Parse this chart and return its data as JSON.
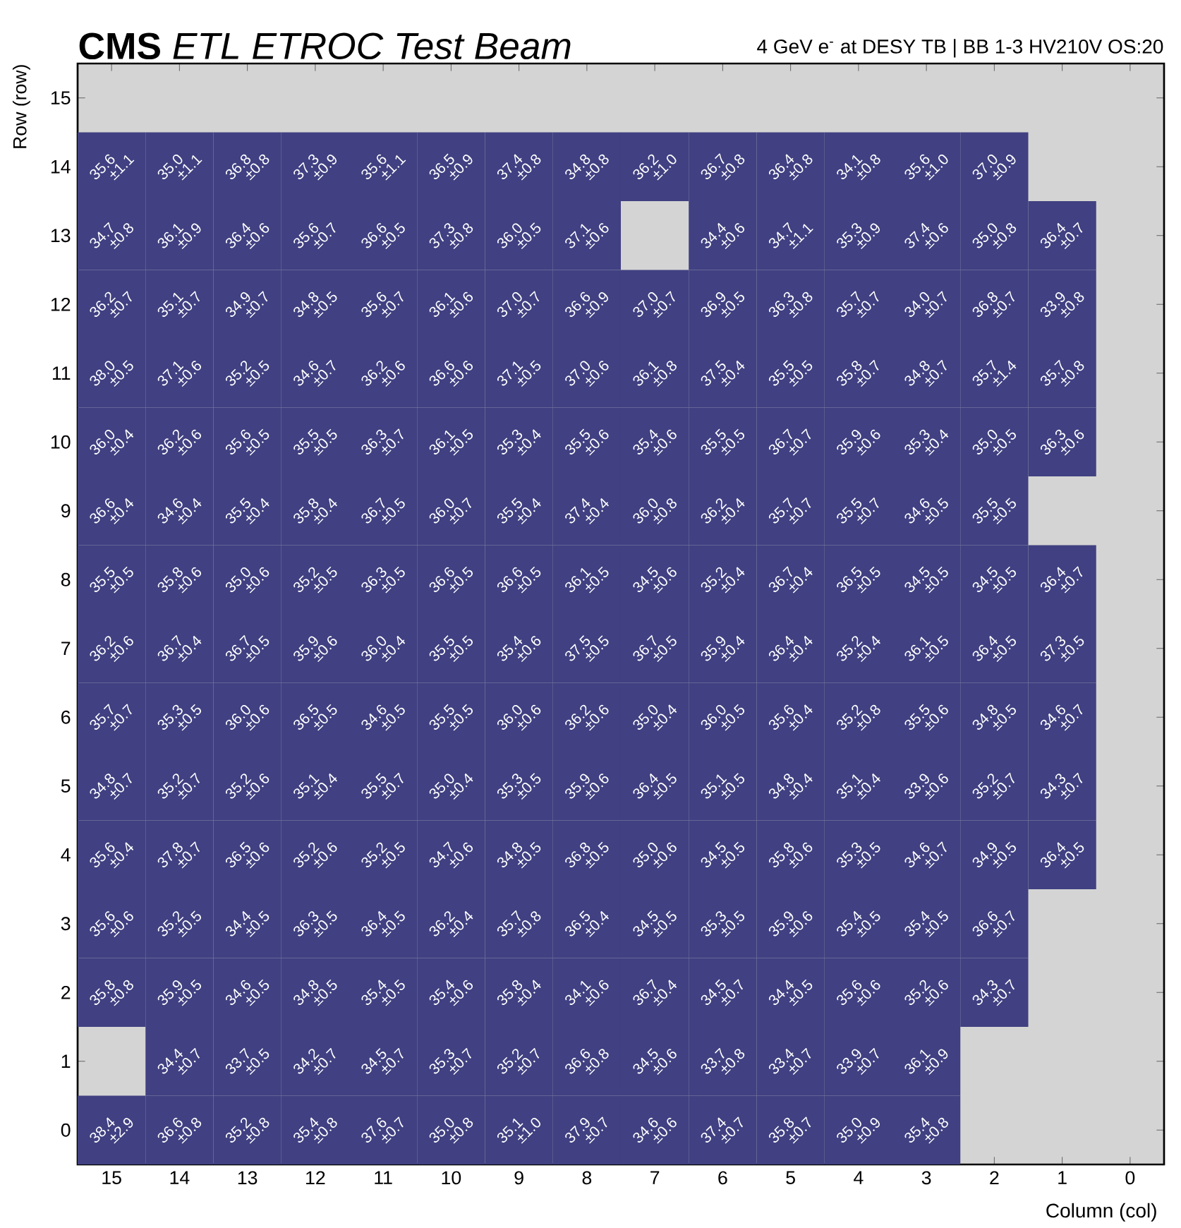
{
  "chart_data": {
    "type": "heatmap",
    "title": "**CMS** *ETL ETROC Test Beam*",
    "subtitle": "4 GeV e$^{-}$ at DESY TB | BB 1-3 HV210V OS:20",
    "xlabel": "Column (col)",
    "ylabel": "Row (row)",
    "categories": [
      "15",
      "14",
      "13",
      "12",
      "11",
      "10",
      "9",
      "8",
      "7",
      "6",
      "5",
      "4",
      "3",
      "2",
      "1",
      "0"
    ],
    "y_categories": [
      "15",
      "14",
      "13",
      "12",
      "11",
      "10",
      "9",
      "8",
      "7",
      "6",
      "5",
      "4",
      "3",
      "2",
      "1",
      "0"
    ],
    "cells": [
      [
        null,
        null,
        null,
        null,
        null,
        null,
        null,
        null,
        null,
        null,
        null,
        null,
        null,
        null,
        null,
        null
      ],
      [
        35.6,
        35.0,
        36.8,
        37.3,
        35.6,
        36.5,
        37.4,
        34.8,
        36.2,
        36.7,
        36.4,
        34.1,
        35.6,
        37.0,
        null,
        null
      ],
      [
        34.7,
        36.1,
        36.4,
        35.6,
        36.6,
        37.3,
        36.0,
        37.1,
        null,
        34.4,
        34.7,
        35.3,
        37.4,
        35.0,
        36.4,
        null
      ],
      [
        36.2,
        35.1,
        34.9,
        34.8,
        35.6,
        36.1,
        37.0,
        36.6,
        37.0,
        36.9,
        36.3,
        35.7,
        34.0,
        36.8,
        33.9,
        null
      ],
      [
        38.0,
        37.1,
        35.2,
        34.6,
        36.2,
        36.6,
        37.1,
        37.0,
        36.1,
        37.5,
        35.5,
        35.8,
        34.8,
        35.7,
        35.7,
        null
      ],
      [
        36.0,
        36.2,
        35.6,
        35.5,
        36.3,
        36.1,
        35.3,
        35.5,
        35.4,
        35.5,
        36.7,
        35.9,
        35.3,
        35.0,
        36.3,
        null
      ],
      [
        36.6,
        34.6,
        35.5,
        35.8,
        36.7,
        36.0,
        35.5,
        37.4,
        36.0,
        36.2,
        35.7,
        35.5,
        34.6,
        35.5,
        null,
        null
      ],
      [
        35.5,
        35.8,
        35.0,
        35.2,
        36.3,
        36.6,
        36.6,
        36.1,
        34.5,
        35.2,
        36.7,
        36.5,
        34.5,
        34.5,
        36.4,
        null
      ],
      [
        36.2,
        36.7,
        36.7,
        35.9,
        36.0,
        35.5,
        35.4,
        37.5,
        36.7,
        35.9,
        36.4,
        35.2,
        36.1,
        36.4,
        37.3,
        null
      ],
      [
        35.7,
        35.3,
        36.0,
        36.5,
        34.6,
        35.5,
        36.0,
        36.2,
        35.0,
        36.0,
        35.6,
        35.2,
        35.5,
        34.8,
        34.6,
        null
      ],
      [
        34.8,
        35.2,
        35.2,
        35.1,
        35.5,
        35.0,
        35.3,
        35.9,
        36.4,
        35.1,
        34.8,
        35.1,
        33.9,
        35.2,
        34.3,
        null
      ],
      [
        35.6,
        37.8,
        36.5,
        35.2,
        35.2,
        34.7,
        34.8,
        36.8,
        35.0,
        34.5,
        35.8,
        35.3,
        34.6,
        34.9,
        36.4,
        null
      ],
      [
        35.6,
        35.2,
        34.4,
        36.3,
        36.4,
        36.2,
        35.7,
        36.5,
        34.5,
        35.3,
        35.9,
        35.4,
        35.4,
        36.6,
        null,
        null
      ],
      [
        35.8,
        35.9,
        34.6,
        34.8,
        35.4,
        35.4,
        35.8,
        34.1,
        36.7,
        34.5,
        34.4,
        35.6,
        35.2,
        34.3,
        null,
        null
      ],
      [
        null,
        34.4,
        33.7,
        34.2,
        34.5,
        35.3,
        35.2,
        36.6,
        34.5,
        33.7,
        33.4,
        33.9,
        36.1,
        null,
        null,
        null
      ],
      [
        38.4,
        36.6,
        35.2,
        35.4,
        37.6,
        35.0,
        35.1,
        37.9,
        34.6,
        37.4,
        35.8,
        35.0,
        35.4,
        null,
        null,
        null
      ]
    ],
    "cell_labels": [
      [
        null,
        null,
        null,
        null,
        null,
        null,
        null,
        null,
        null,
        null,
        null,
        null,
        null,
        null,
        null,
        null
      ],
      [
        "35.6",
        "35.0",
        "36.8",
        "37.3",
        "35.6",
        "36.5",
        "37.4",
        "34.8",
        "36.2",
        "36.7",
        "36.4",
        "34.1",
        "35.6",
        "37.0",
        null,
        null
      ],
      [
        "34.7",
        "36.1",
        "36.4",
        "35.6",
        "36.6",
        "37.3",
        "36.0",
        "37.1",
        null,
        "34.4",
        "34.7",
        "35.3",
        "37.4",
        "35.0",
        "36.4",
        null
      ],
      [
        "36.2",
        "35.1",
        "34.9",
        "34.8",
        "35.6",
        "36.1",
        "37.0",
        "36.6",
        "37.0",
        "36.9",
        "36.3",
        "35.7",
        "34.0",
        "36.8",
        "33.9",
        null
      ],
      [
        "38.0",
        "37.1",
        "35.2",
        "34.6",
        "36.2",
        "36.6",
        "37.1",
        "37.0",
        "36.1",
        "37.5",
        "35.5",
        "35.8",
        "34.8",
        "35.7",
        "35.7",
        null
      ],
      [
        "36.0",
        "36.2",
        "35.6",
        "35.5",
        "36.3",
        "36.1",
        "35.3",
        "35.5",
        "35.4",
        "35.5",
        "36.7",
        "35.9",
        "35.3",
        "35.0",
        "36.3",
        null
      ],
      [
        "36.6",
        "34.6",
        "35.5",
        "35.8",
        "36.7",
        "36.0",
        "35.5",
        "37.4",
        "36.0",
        "36.2",
        "35.7",
        "35.5",
        "34.6",
        "35.5",
        null,
        null
      ],
      [
        "35.5",
        "35.8",
        "35.0",
        "35.2",
        "36.3",
        "36.6",
        "36.6",
        "36.1",
        "34.5",
        "35.2",
        "36.7",
        "36.5",
        "34.5",
        "34.5",
        "36.4",
        null
      ],
      [
        "36.2",
        "36.7",
        "36.7",
        "35.9",
        "36.0",
        "35.5",
        "35.4",
        "37.5",
        "36.7",
        "35.9",
        "36.4",
        "35.2",
        "36.1",
        "36.4",
        "37.3",
        null
      ],
      [
        "35.7",
        "35.3",
        "36.0",
        "36.5",
        "34.6",
        "35.5",
        "36.0",
        "36.2",
        "35.0",
        "36.0",
        "35.6",
        "35.2",
        "35.5",
        "34.8",
        "34.6",
        null
      ],
      [
        "34.8",
        "35.2",
        "35.2",
        "35.1",
        "35.5",
        "35.0",
        "35.3",
        "35.9",
        "36.4",
        "35.1",
        "34.8",
        "35.1",
        "33.9",
        "35.2",
        "34.3",
        null
      ],
      [
        "35.6",
        "37.8",
        "36.5",
        "35.2",
        "35.2",
        "34.7",
        "34.8",
        "36.8",
        "35.0",
        "34.5",
        "35.8",
        "35.3",
        "34.6",
        "34.9",
        "36.4",
        null
      ],
      [
        "35.6",
        "35.2",
        "34.4",
        "36.3",
        "36.4",
        "36.2",
        "35.7",
        "36.5",
        "34.5",
        "35.3",
        "35.9",
        "35.4",
        "35.4",
        "36.6",
        null,
        null
      ],
      [
        "35.8",
        "35.9",
        "34.6",
        "34.8",
        "35.4",
        "35.4",
        "35.8",
        "34.1",
        "36.7",
        "34.5",
        "34.4",
        "35.6",
        "35.2",
        "34.3",
        null,
        null
      ],
      [
        null,
        "34.4",
        "33.7",
        "34.2",
        "34.5",
        "35.3",
        "35.2",
        "36.6",
        "34.5",
        "33.7",
        "33.4",
        "33.9",
        "36.1",
        null,
        null,
        null
      ],
      [
        "38.4",
        "36.6",
        "35.2",
        "35.4",
        "37.6",
        "35.0",
        "35.1",
        "37.9",
        "34.6",
        "37.4",
        "35.8",
        "35.0",
        "35.4",
        null,
        null,
        null
      ]
    ],
    "annotations": [
      "±1.1",
      "±1.1",
      "±0.8",
      "±0.9",
      "±1.1",
      "±0.9",
      "±0.8",
      "±0.8",
      "±1.0",
      "±0.8",
      "±0.8",
      "±0.8",
      "±1.0",
      "±0.9",
      "±0.8",
      "±0.9",
      "±0.6",
      "±0.7",
      "±0.5",
      "±0.8",
      "±0.5",
      "±0.6",
      "±0.6",
      "±1.1",
      "±0.9",
      "±0.6",
      "±0.8",
      "±0.7",
      "±0.7",
      "±0.7",
      "±0.7",
      "±0.5",
      "±0.7",
      "±0.6",
      "±0.7",
      "±0.9",
      "±0.7",
      "±0.5",
      "±0.8",
      "±0.7",
      "±0.7",
      "±0.7",
      "±0.8",
      "±0.5",
      "±0.6",
      "±0.5",
      "±0.7",
      "±0.6",
      "±0.6",
      "±0.5",
      "±0.6",
      "±0.8",
      "±0.4",
      "±0.5",
      "±0.7",
      "±0.7",
      "±1.4",
      "±0.8",
      "±0.4",
      "±0.6",
      "±0.5",
      "±0.5",
      "±0.7",
      "±0.5",
      "±0.4",
      "±0.6",
      "±0.6",
      "±0.5",
      "±0.7",
      "±0.6",
      "±0.4",
      "±0.5",
      "±0.6",
      "±0.4",
      "±0.4",
      "±0.4",
      "±0.4",
      "±0.5",
      "±0.7",
      "±0.4",
      "±0.4",
      "±0.8",
      "±0.4",
      "±0.7",
      "±0.7",
      "±0.5",
      "±0.5",
      "±0.5",
      "±0.6",
      "±0.6",
      "±0.5",
      "±0.5",
      "±0.5",
      "±0.5",
      "±0.5",
      "±0.6",
      "±0.4",
      "±0.4",
      "±0.5",
      "±0.5",
      "±0.5",
      "±0.7",
      "±0.6",
      "±0.4",
      "±0.5",
      "±0.6",
      "±0.4",
      "±0.5",
      "±0.6",
      "±0.5",
      "±0.5",
      "±0.4",
      "±0.4",
      "±0.4",
      "±0.5",
      "±0.5",
      "±0.5",
      "±0.7",
      "±0.5",
      "±0.6",
      "±0.5",
      "±0.5",
      "±0.5",
      "±0.6",
      "±0.6",
      "±0.4",
      "±0.5",
      "±0.4",
      "±0.8",
      "±0.6",
      "±0.5",
      "±0.7",
      "±0.7",
      "±0.7",
      "±0.6",
      "±0.4",
      "±0.7",
      "±0.4",
      "±0.5",
      "±0.6",
      "±0.5",
      "±0.5",
      "±0.4",
      "±0.4",
      "±0.6",
      "±0.7",
      "±0.7",
      "±0.4",
      "±0.7",
      "±0.6",
      "±0.6",
      "±0.5",
      "±0.6",
      "±0.5",
      "±0.5",
      "±0.6",
      "±0.5",
      "±0.6",
      "±0.5",
      "±0.7",
      "±0.5",
      "±0.5",
      "±0.6",
      "±0.5",
      "±0.5",
      "±0.5",
      "±0.5",
      "±0.4",
      "±0.8",
      "±0.4",
      "±0.5",
      "±0.5",
      "±0.6",
      "±0.5",
      "±0.5",
      "±0.7",
      "±0.8",
      "±0.5",
      "±0.5",
      "±0.5",
      "±0.5",
      "±0.6",
      "±0.4",
      "±0.6",
      "±0.4",
      "±0.7",
      "±0.5",
      "±0.6",
      "±0.6",
      "±0.7",
      "±0.7",
      "±0.5",
      "±0.7",
      "±0.7",
      "±0.7",
      "±0.7",
      "±0.8",
      "±0.6",
      "±0.8",
      "±0.7",
      "±0.7",
      "±0.9",
      "±2.9",
      "±0.8",
      "±0.8",
      "±0.8",
      "±0.7",
      "±0.8",
      "±1.0",
      "±0.7",
      "±0.6",
      "±0.7",
      "±0.7",
      "±0.9",
      "±0.8"
    ]
  }
}
